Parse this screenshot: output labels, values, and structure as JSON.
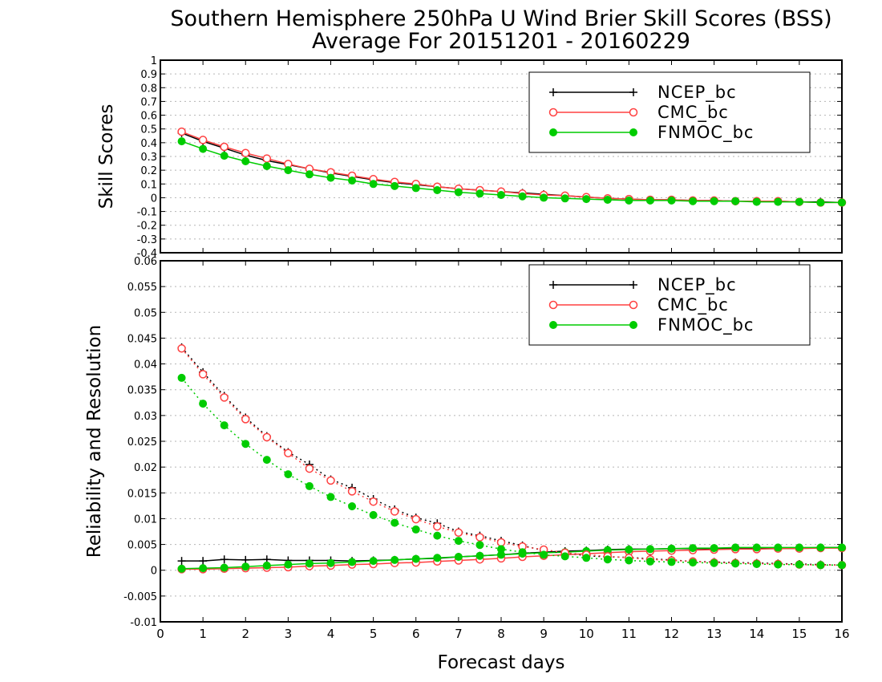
{
  "title_line1": "Southern Hemisphere 250hPa U Wind Brier Skill Scores (BSS)",
  "title_line2": "Average For 20151201 - 20160229",
  "xlabel": "Forecast days",
  "chart_data": [
    {
      "type": "line",
      "ylabel": "Skill Scores",
      "xlim": [
        0,
        16
      ],
      "ylim": [
        -0.4,
        1
      ],
      "grid": true,
      "legend_position": "top-right",
      "xticks": [
        "0",
        "1",
        "2",
        "3",
        "4",
        "5",
        "6",
        "7",
        "8",
        "9",
        "10",
        "11",
        "12",
        "13",
        "14",
        "15",
        "16"
      ],
      "yticks": [
        "-0.4",
        "-0.3",
        "-0.2",
        "-0.1",
        "0",
        "0.1",
        "0.2",
        "0.3",
        "0.4",
        "0.5",
        "0.6",
        "0.7",
        "0.8",
        "0.9",
        "1"
      ],
      "x": [
        0.5,
        1,
        1.5,
        2,
        2.5,
        3,
        3.5,
        4,
        4.5,
        5,
        5.5,
        6,
        6.5,
        7,
        7.5,
        8,
        8.5,
        9,
        9.5,
        10,
        10.5,
        11,
        11.5,
        12,
        12.5,
        13,
        13.5,
        14,
        14.5,
        15,
        15.5,
        16
      ],
      "series": [
        {
          "name": "NCEP_bc",
          "color": "#000000",
          "marker": "plus",
          "style": "solid",
          "values": [
            0.47,
            0.41,
            0.36,
            0.31,
            0.27,
            0.24,
            0.21,
            0.18,
            0.155,
            0.13,
            0.11,
            0.095,
            0.08,
            0.065,
            0.055,
            0.045,
            0.035,
            0.025,
            0.015,
            0.005,
            -0.005,
            -0.01,
            -0.015,
            -0.015,
            -0.02,
            -0.02,
            -0.025,
            -0.025,
            -0.025,
            -0.03,
            -0.03,
            -0.035
          ]
        },
        {
          "name": "CMC_bc",
          "color": "#ff4040",
          "marker": "open-circle",
          "style": "solid",
          "values": [
            0.48,
            0.42,
            0.37,
            0.325,
            0.285,
            0.245,
            0.21,
            0.185,
            0.16,
            0.135,
            0.115,
            0.1,
            0.08,
            0.065,
            0.055,
            0.045,
            0.03,
            0.02,
            0.015,
            0.005,
            -0.005,
            -0.01,
            -0.015,
            -0.015,
            -0.02,
            -0.02,
            -0.025,
            -0.025,
            -0.025,
            -0.03,
            -0.035,
            -0.035
          ]
        },
        {
          "name": "FNMOC_bc",
          "color": "#00cc00",
          "marker": "filled-circle",
          "style": "solid",
          "values": [
            0.41,
            0.355,
            0.305,
            0.265,
            0.23,
            0.2,
            0.17,
            0.145,
            0.125,
            0.1,
            0.085,
            0.07,
            0.055,
            0.04,
            0.03,
            0.02,
            0.01,
            0.0,
            -0.005,
            -0.01,
            -0.015,
            -0.02,
            -0.02,
            -0.02,
            -0.025,
            -0.025,
            -0.025,
            -0.03,
            -0.03,
            -0.03,
            -0.035,
            -0.035
          ]
        }
      ]
    },
    {
      "type": "line",
      "ylabel": "Reliability and Resolution",
      "xlim": [
        0,
        16
      ],
      "ylim": [
        -0.01,
        0.06
      ],
      "grid": true,
      "legend_position": "top-right",
      "xticks": [
        "0",
        "1",
        "2",
        "3",
        "4",
        "5",
        "6",
        "7",
        "8",
        "9",
        "10",
        "11",
        "12",
        "13",
        "14",
        "15",
        "16"
      ],
      "yticks": [
        "-0.01",
        "-0.005",
        "0",
        "0.005",
        "0.01",
        "0.015",
        "0.02",
        "0.025",
        "0.03",
        "0.035",
        "0.04",
        "0.045",
        "0.05",
        "0.055",
        "0.06"
      ],
      "x": [
        0.5,
        1,
        1.5,
        2,
        2.5,
        3,
        3.5,
        4,
        4.5,
        5,
        5.5,
        6,
        6.5,
        7,
        7.5,
        8,
        8.5,
        9,
        9.5,
        10,
        10.5,
        11,
        11.5,
        12,
        12.5,
        13,
        13.5,
        14,
        14.5,
        15,
        15.5,
        16
      ],
      "series": [
        {
          "name": "NCEP_bc",
          "component": "reliability",
          "color": "#000000",
          "marker": "plus",
          "style": "solid",
          "values": [
            0.0018,
            0.0018,
            0.0021,
            0.002,
            0.0021,
            0.0019,
            0.0019,
            0.0019,
            0.0018,
            0.0019,
            0.002,
            0.0022,
            0.0023,
            0.0026,
            0.0028,
            0.003,
            0.0033,
            0.0035,
            0.0037,
            0.0038,
            0.004,
            0.0041,
            0.0041,
            0.0042,
            0.0042,
            0.0042,
            0.0043,
            0.0043,
            0.0043,
            0.0043,
            0.0044,
            0.0044
          ]
        },
        {
          "name": "CMC_bc",
          "component": "reliability",
          "color": "#ff4040",
          "marker": "open-circle",
          "style": "solid",
          "values": [
            0.0002,
            0.0002,
            0.0003,
            0.0004,
            0.0005,
            0.0006,
            0.0008,
            0.0009,
            0.0011,
            0.0012,
            0.0014,
            0.0015,
            0.0017,
            0.0019,
            0.0021,
            0.0023,
            0.0026,
            0.0028,
            0.003,
            0.0032,
            0.0034,
            0.0036,
            0.0037,
            0.0038,
            0.0039,
            0.004,
            0.0041,
            0.0041,
            0.0042,
            0.0042,
            0.0043,
            0.0043
          ]
        },
        {
          "name": "FNMOC_bc",
          "component": "reliability",
          "color": "#00cc00",
          "marker": "filled-circle",
          "style": "solid",
          "values": [
            0.0003,
            0.0004,
            0.0005,
            0.0007,
            0.0009,
            0.0011,
            0.0013,
            0.0014,
            0.0016,
            0.0018,
            0.002,
            0.0022,
            0.0024,
            0.0026,
            0.0028,
            0.003,
            0.0032,
            0.0034,
            0.0035,
            0.0037,
            0.0039,
            0.004,
            0.0041,
            0.0042,
            0.0043,
            0.0043,
            0.0044,
            0.0044,
            0.0044,
            0.0044,
            0.0044,
            0.0044
          ]
        },
        {
          "name": "NCEP_bc",
          "component": "resolution",
          "color": "#000000",
          "marker": "plus",
          "style": "dotted",
          "values": [
            0.0432,
            0.0384,
            0.0338,
            0.0296,
            0.026,
            0.0229,
            0.0205,
            0.0176,
            0.016,
            0.0138,
            0.0118,
            0.0102,
            0.0091,
            0.0075,
            0.0067,
            0.0057,
            0.0048,
            0.0038,
            0.0034,
            0.0028,
            0.0026,
            0.0025,
            0.0022,
            0.002,
            0.0017,
            0.0016,
            0.0015,
            0.0014,
            0.0013,
            0.0012,
            0.0011,
            0.001
          ]
        },
        {
          "name": "CMC_bc",
          "component": "resolution",
          "color": "#ff4040",
          "marker": "open-circle",
          "style": "dotted",
          "values": [
            0.043,
            0.038,
            0.0335,
            0.0293,
            0.0258,
            0.0227,
            0.0197,
            0.0174,
            0.0153,
            0.0133,
            0.0114,
            0.0099,
            0.0085,
            0.0073,
            0.0064,
            0.0054,
            0.0046,
            0.004,
            0.0034,
            0.003,
            0.0027,
            0.0024,
            0.0021,
            0.0019,
            0.0017,
            0.0015,
            0.0014,
            0.0013,
            0.0012,
            0.0011,
            0.001,
            0.001
          ]
        },
        {
          "name": "FNMOC_bc",
          "component": "resolution",
          "color": "#00cc00",
          "marker": "filled-circle",
          "style": "dotted",
          "values": [
            0.0373,
            0.0323,
            0.0281,
            0.0245,
            0.0214,
            0.0186,
            0.0163,
            0.0142,
            0.0124,
            0.0107,
            0.0092,
            0.0079,
            0.0067,
            0.0057,
            0.0049,
            0.0041,
            0.0035,
            0.003,
            0.0027,
            0.0024,
            0.0021,
            0.0019,
            0.0017,
            0.0016,
            0.0015,
            0.0014,
            0.0013,
            0.0012,
            0.0011,
            0.0011,
            0.001,
            0.001
          ]
        }
      ]
    }
  ]
}
